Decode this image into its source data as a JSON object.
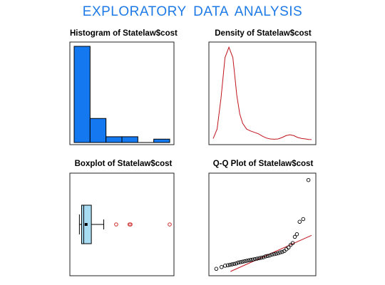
{
  "title": "EXPLORATORY  DATA  ANALYSIS",
  "colors": {
    "title": "#1e7ae6",
    "hist_fill": "#1478f0",
    "density_line": "#c0141e",
    "box_fill": "#a8dcf2",
    "outlier": "#d03030",
    "qq_line": "#c0141e"
  },
  "chart_data": [
    {
      "type": "histogram",
      "title": "Histogram of Statelaw$cost",
      "bins": 6,
      "values": [
        1.0,
        0.25,
        0.06,
        0.06,
        0.0,
        0.035
      ],
      "grid": false
    },
    {
      "type": "line",
      "title": "Density of Statelaw$cost",
      "x": [
        0,
        0.04,
        0.08,
        0.12,
        0.16,
        0.2,
        0.22,
        0.24,
        0.27,
        0.3,
        0.34,
        0.38,
        0.42,
        0.46,
        0.5,
        0.54,
        0.58,
        0.62,
        0.66,
        0.7,
        0.74,
        0.78,
        0.82,
        0.86,
        0.9,
        0.94,
        0.97,
        1.0
      ],
      "y": [
        0.02,
        0.12,
        0.45,
        0.88,
        0.99,
        0.88,
        0.68,
        0.48,
        0.28,
        0.18,
        0.12,
        0.1,
        0.085,
        0.07,
        0.045,
        0.025,
        0.015,
        0.012,
        0.015,
        0.03,
        0.05,
        0.06,
        0.05,
        0.03,
        0.02,
        0.015,
        0.01,
        0.008
      ],
      "grid": false
    },
    {
      "type": "box",
      "title": "Boxplot of Statelaw$cost",
      "stats": {
        "min": 0.055,
        "q1": 0.078,
        "median": 0.1,
        "mean": 0.125,
        "q3": 0.18,
        "max": 0.31
      },
      "outliers": [
        0.44,
        0.58,
        0.59,
        1.0
      ],
      "grid": false
    },
    {
      "type": "scatter",
      "title": "Q-Q Plot of Statelaw$cost",
      "theoretical": [
        -2.2,
        -1.95,
        -1.78,
        -1.65,
        -1.55,
        -1.45,
        -1.35,
        -1.25,
        -1.15,
        -1.05,
        -0.95,
        -0.85,
        -0.75,
        -0.65,
        -0.55,
        -0.45,
        -0.35,
        -0.25,
        -0.15,
        -0.05,
        0.05,
        0.15,
        0.25,
        0.35,
        0.45,
        0.55,
        0.65,
        0.75,
        0.85,
        0.95,
        1.05,
        1.15,
        1.25,
        1.35,
        1.45,
        1.55,
        1.65,
        1.78,
        1.95,
        2.2
      ],
      "sample": [
        0.0,
        0.02,
        0.035,
        0.04,
        0.045,
        0.05,
        0.055,
        0.06,
        0.07,
        0.075,
        0.08,
        0.085,
        0.09,
        0.095,
        0.1,
        0.105,
        0.11,
        0.115,
        0.12,
        0.125,
        0.13,
        0.14,
        0.145,
        0.15,
        0.16,
        0.165,
        0.17,
        0.175,
        0.185,
        0.19,
        0.2,
        0.22,
        0.24,
        0.27,
        0.29,
        0.36,
        0.39,
        0.53,
        0.56,
        1.0
      ],
      "reference_line": {
        "intercept": 0.13,
        "slope": 0.105
      },
      "grid": false
    }
  ]
}
